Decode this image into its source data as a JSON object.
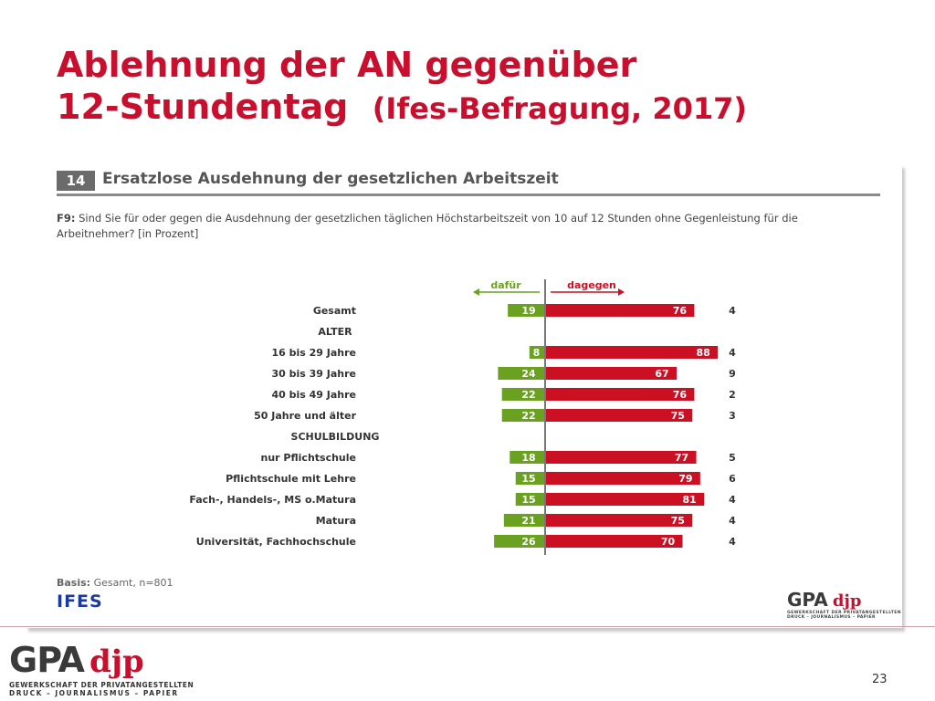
{
  "slide": {
    "title_line1": "Ablehnung der AN gegenüber",
    "title_line2": "12-Stundentag",
    "title_paren": "(Ifes-Befragung, 2017)",
    "page_number": "23"
  },
  "figure": {
    "number": "14",
    "subtitle": "Ersatzlose Ausdehnung der gesetzlichen Arbeitszeit",
    "question_label": "F9:",
    "question_text": "Sind Sie für oder gegen die Ausdehnung der gesetzlichen täglichen Höchstarbeitszeit von 10 auf 12 Stunden ohne Gegenleistung für die Arbeitnehmer? [in Prozent]",
    "basis_label": "Basis:",
    "basis_text": "Gesamt, n=801",
    "ifes_logo": "IFES"
  },
  "logos": {
    "gpa": "GPA",
    "djp": "djp",
    "sub_line1": "GEWERKSCHAFT DER PRIVATANGESTELLTEN",
    "sub_line2": "DRUCK – JOURNALISMUS – PAPIER"
  },
  "colors": {
    "title_red": "#c8102e",
    "bar_green": "#6aa121",
    "bar_red": "#cc1024"
  },
  "chart_data": {
    "type": "bar",
    "orientation": "horizontal-diverging",
    "legend_left": "dafür",
    "legend_right": "dagegen",
    "rows": [
      {
        "label": "Gesamt",
        "for": 19,
        "against": 76,
        "other": 4,
        "heading": false
      },
      {
        "label": "ALTER",
        "heading": true
      },
      {
        "label": "16 bis 29 Jahre",
        "for": 8,
        "against": 88,
        "other": 4,
        "heading": false
      },
      {
        "label": "30 bis 39 Jahre",
        "for": 24,
        "against": 67,
        "other": 9,
        "heading": false
      },
      {
        "label": "40 bis 49 Jahre",
        "for": 22,
        "against": 76,
        "other": 2,
        "heading": false
      },
      {
        "label": "50 Jahre und älter",
        "for": 22,
        "against": 75,
        "other": 3,
        "heading": false
      },
      {
        "label": "SCHULBILDUNG",
        "heading": true
      },
      {
        "label": "nur Pflichtschule",
        "for": 18,
        "against": 77,
        "other": 5,
        "heading": false
      },
      {
        "label": "Pflichtschule mit Lehre",
        "for": 15,
        "against": 79,
        "other": 6,
        "heading": false
      },
      {
        "label": "Fach-, Handels-, MS o.Matura",
        "for": 15,
        "against": 81,
        "other": 4,
        "heading": false
      },
      {
        "label": "Matura",
        "for": 21,
        "against": 75,
        "other": 4,
        "heading": false
      },
      {
        "label": "Universität, Fachhochschule",
        "for": 26,
        "against": 70,
        "other": 4,
        "heading": false
      }
    ]
  }
}
